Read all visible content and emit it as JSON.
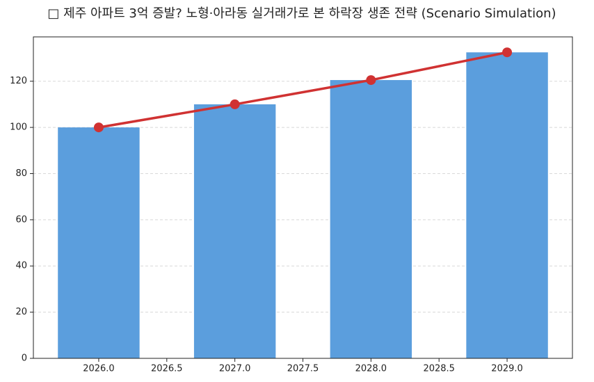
{
  "chart_data": {
    "type": "combo",
    "title": "□ 제주 아파트 3억 증발? 노형·아라동 실거래가로 본 하락장 생존 전략 (Scenario Simulation)",
    "x": [
      2026,
      2027,
      2028,
      2029
    ],
    "series": [
      {
        "type": "bar",
        "color": "#5b9edd",
        "values": [
          100,
          110,
          120.5,
          132.5
        ]
      },
      {
        "type": "line",
        "color": "#d03232",
        "values": [
          100,
          110,
          120.5,
          132.5
        ]
      }
    ],
    "bar_width": 0.6,
    "xlim": [
      2025.52,
      2029.48
    ],
    "xticks": [
      {
        "value": 2026,
        "label": "2026.0"
      },
      {
        "value": 2026.5,
        "label": "2026.5"
      },
      {
        "value": 2027,
        "label": "2027.0"
      },
      {
        "value": 2027.5,
        "label": "2027.5"
      },
      {
        "value": 2028,
        "label": "2028.0"
      },
      {
        "value": 2028.5,
        "label": "2028.5"
      },
      {
        "value": 2029,
        "label": "2029.0"
      }
    ],
    "ylim": [
      0,
      139.2
    ],
    "yticks": [
      0,
      20,
      40,
      60,
      80,
      100,
      120
    ],
    "grid": true
  }
}
